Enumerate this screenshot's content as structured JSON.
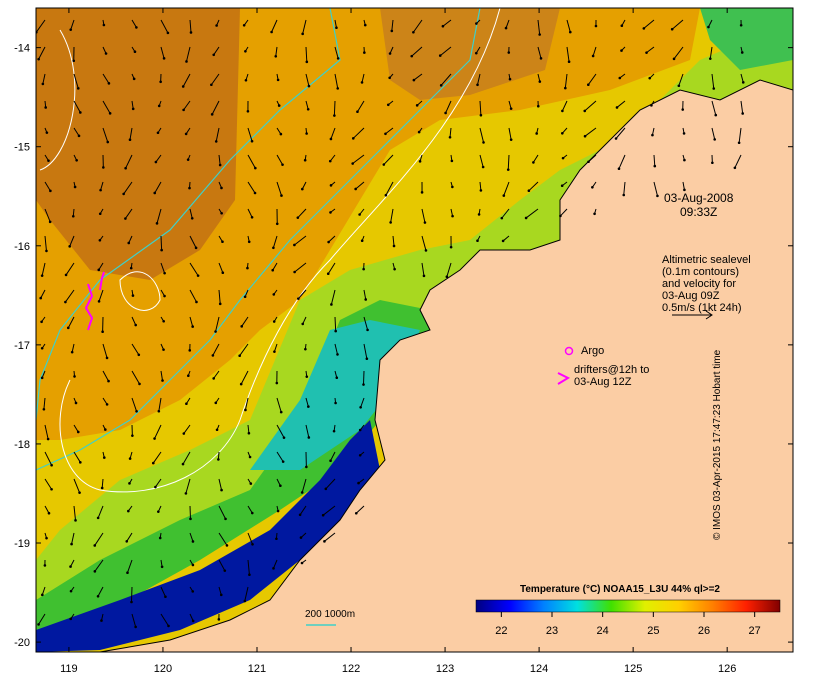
{
  "map": {
    "x_ticks": [
      "119",
      "120",
      "121",
      "122",
      "123",
      "124",
      "125",
      "126"
    ],
    "y_ticks": [
      "-14",
      "-15",
      "-16",
      "-17",
      "-18",
      "-19",
      "-20"
    ],
    "lon_range": [
      118.65,
      126.7
    ],
    "lat_range": [
      -20.1,
      -13.6
    ],
    "colors": {
      "land": "#fbcda4",
      "coastline": "#000000",
      "contour_200m": "#3fd0c8",
      "sea_level_contour": "#ffffff",
      "velocity_arrow": "#000000",
      "drifter": "#ff00ff"
    }
  },
  "annotations": {
    "date": "03-Aug-2008",
    "time": "09:33Z",
    "altimetry_lines": [
      "Altimetric sealevel",
      "(0.1m contours)",
      "and velocity for",
      "03-Aug 09Z",
      "0.5m/s (1kt 24h)"
    ],
    "argo_label": "Argo",
    "drifters_lines": [
      "drifters@12h to",
      "03-Aug 12Z"
    ],
    "depth_label": "200  1000m"
  },
  "colorbar": {
    "title": "Temperature (°C) NOAA15_L3U 44% ql>=2",
    "ticks": [
      "22",
      "23",
      "24",
      "25",
      "26",
      "27"
    ],
    "range": [
      21.5,
      27.5
    ],
    "stops": [
      "#000080",
      "#0000ff",
      "#0080ff",
      "#00e0e0",
      "#40e000",
      "#e0f000",
      "#ffd000",
      "#ff8000",
      "#ff2000",
      "#800000"
    ]
  },
  "credit": "© IMOS 03-Apr-2015 17:47:23 Hobart time"
}
